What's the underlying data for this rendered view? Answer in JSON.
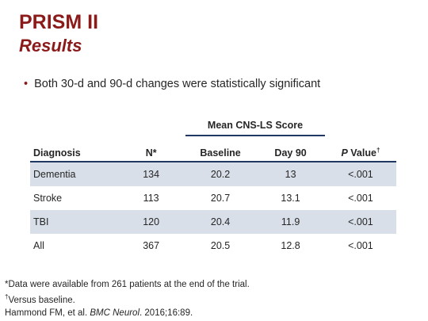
{
  "title": "PRISM II",
  "subtitle": "Results",
  "bullet": "Both 30-d and 90-d changes were statistically significant",
  "table": {
    "group_header": "Mean CNS-LS Score",
    "headers": {
      "diagnosis": "Diagnosis",
      "n": "N*",
      "baseline": "Baseline",
      "day90": "Day 90",
      "p_value_label": "P",
      "p_value_rest": " Value",
      "p_value_mark": "†"
    },
    "rows": [
      {
        "diagnosis": "Dementia",
        "n": "134",
        "baseline": "20.2",
        "day90": "13",
        "p": "<.001"
      },
      {
        "diagnosis": "Stroke",
        "n": "113",
        "baseline": "20.7",
        "day90": "13.1",
        "p": "<.001"
      },
      {
        "diagnosis": "TBI",
        "n": "120",
        "baseline": "20.4",
        "day90": "11.9",
        "p": "<.001"
      },
      {
        "diagnosis": "All",
        "n": "367",
        "baseline": "20.5",
        "day90": "12.8",
        "p": "<.001"
      }
    ]
  },
  "footnotes": {
    "line1": "*Data were available from 261 patients at the end of the trial.",
    "line2_mark": "†",
    "line2": "Versus baseline.",
    "line3_pre": "Hammond FM, et al. ",
    "line3_journal": "BMC Neurol",
    "line3_post": ". 2016;16:89."
  },
  "colors": {
    "title": "#8b1a1a",
    "rule": "#1f3864",
    "row_shade": "#d9dfe8"
  }
}
